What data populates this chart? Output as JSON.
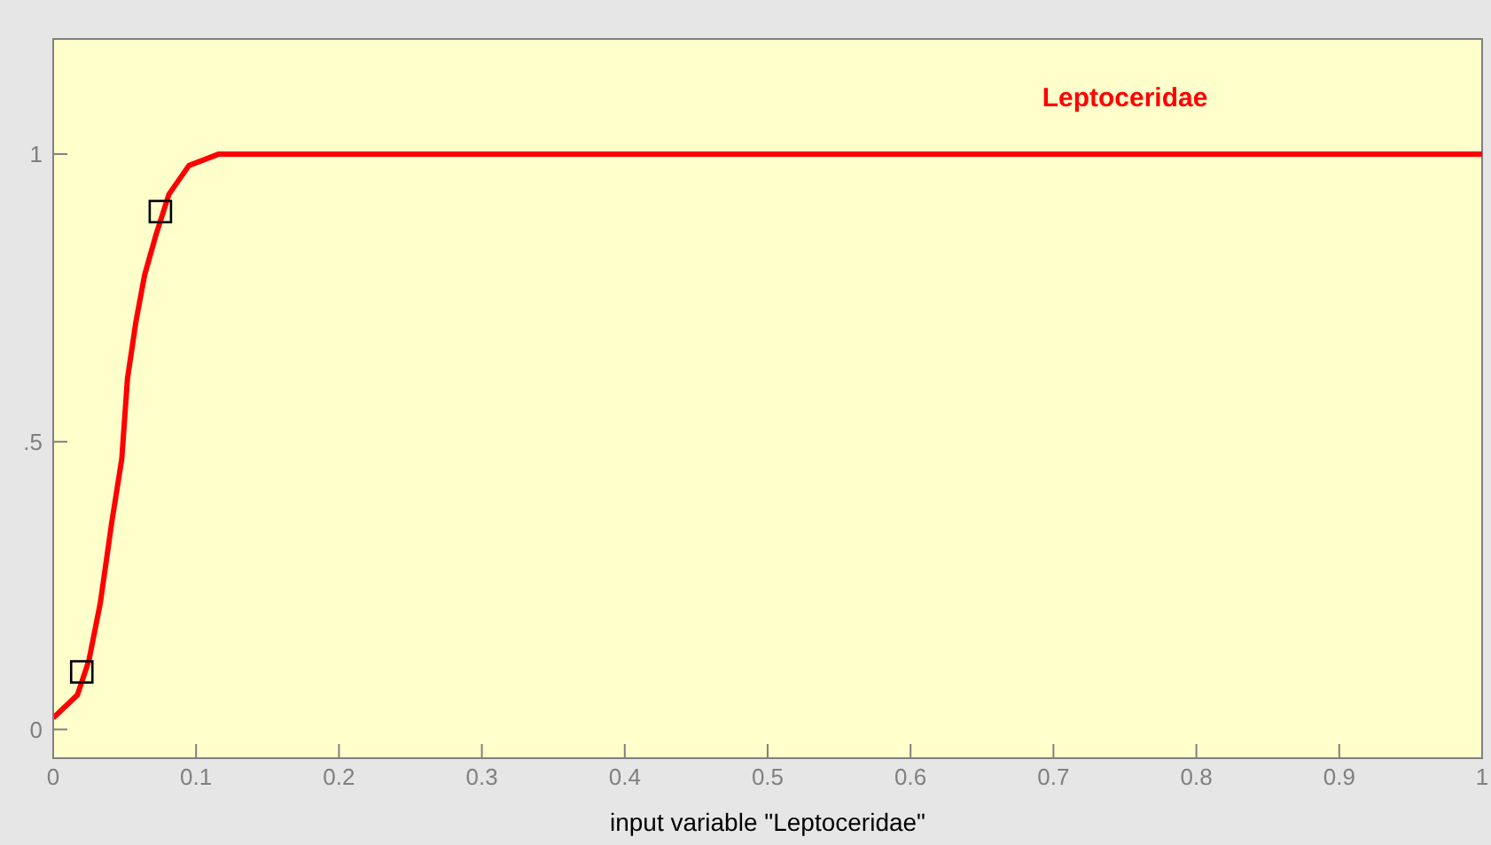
{
  "chart_data": {
    "type": "line",
    "xlabel": "input variable \"Leptoceridae\"",
    "xlim": [
      0,
      1
    ],
    "xticks": [
      0,
      0.1,
      0.2,
      0.3,
      0.4,
      0.5,
      0.6,
      0.7,
      0.8,
      0.9,
      1
    ],
    "ylim": [
      -0.05,
      1.2
    ],
    "yticks": [
      0,
      {
        "value": 0.5,
        "label": ".5"
      },
      1
    ],
    "series": [
      {
        "name": "Leptoceridae",
        "color": "#ff0000",
        "marker": "none",
        "line_style": "solid",
        "x": [
          0,
          0.017,
          0.025,
          0.033,
          0.041,
          0.048,
          0.052,
          0.058,
          0.064,
          0.072,
          0.081,
          0.095,
          0.116,
          0.12,
          1
        ],
        "values": [
          0.02,
          0.06,
          0.12,
          0.22,
          0.36,
          0.47,
          0.61,
          0.71,
          0.79,
          0.86,
          0.93,
          0.98,
          1,
          1,
          1
        ]
      },
      {
        "type": "scatter",
        "color": "#000000",
        "marker": "square",
        "x": [
          0.02,
          0.075
        ],
        "values": [
          0.1,
          0.9
        ]
      }
    ]
  }
}
